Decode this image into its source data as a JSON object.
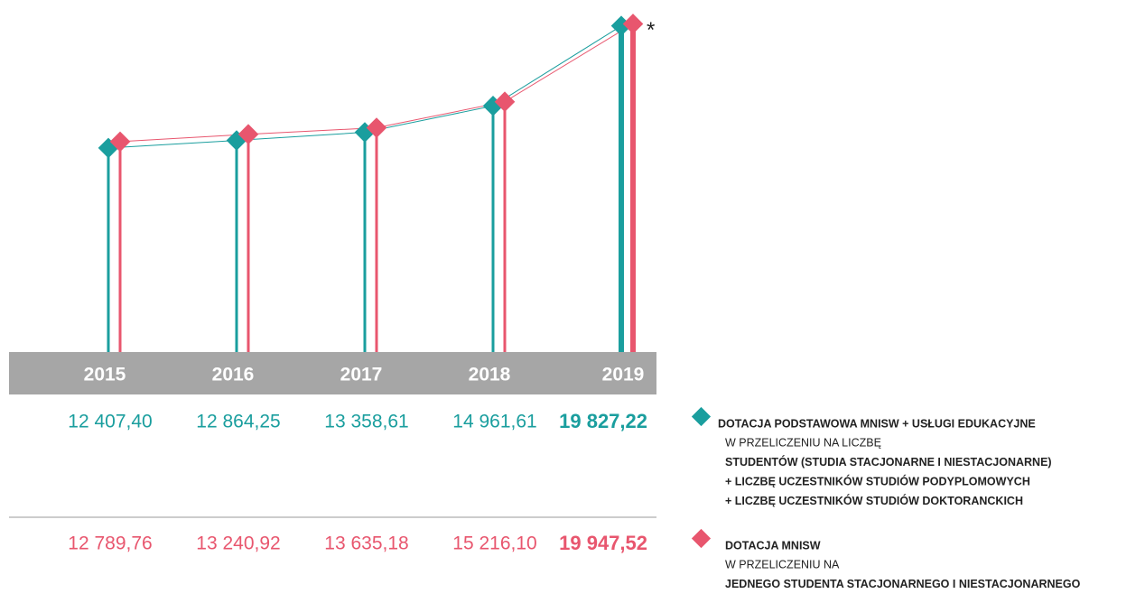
{
  "chart_data": {
    "type": "line",
    "categories": [
      "2015",
      "2016",
      "2017",
      "2018",
      "2019"
    ],
    "ylim": [
      0,
      21400
    ],
    "annotation": "*",
    "series": [
      {
        "name": "DOTACJA PODSTAWOWA MNISW + USŁUGI EDUKACYJNE",
        "color": "#1a9e9e",
        "description": [
          "W PRZELICZENIU NA LICZBĘ",
          "STUDENTÓW (STUDIA STACJONARNE I NIESTACJONARNE)",
          "+ LICZBĘ UCZESTNIKÓW STUDIÓW PODYPLOMOWYCH",
          "+ LICZBĘ UCZESTNIKÓW STUDIÓW DOKTORANCKICH"
        ],
        "values": [
          12407.4,
          12864.25,
          13358.61,
          14961.61,
          19827.22
        ],
        "value_labels": [
          "12 407,40",
          "12 864,25",
          "13 358,61",
          "14 961,61",
          "19 827,22"
        ]
      },
      {
        "name": "DOTACJA MNISW",
        "color": "#e8566e",
        "description": [
          "W PRZELICZENIU NA",
          "JEDNEGO STUDENTA STACJONARNEGO I NIESTACJONARNEGO"
        ],
        "values": [
          12789.76,
          13240.92,
          13635.18,
          15216.1,
          19947.52
        ],
        "value_labels": [
          "12 789,76",
          "13 240,92",
          "13 635,18",
          "15 216,10",
          "19 947,52"
        ]
      }
    ]
  }
}
